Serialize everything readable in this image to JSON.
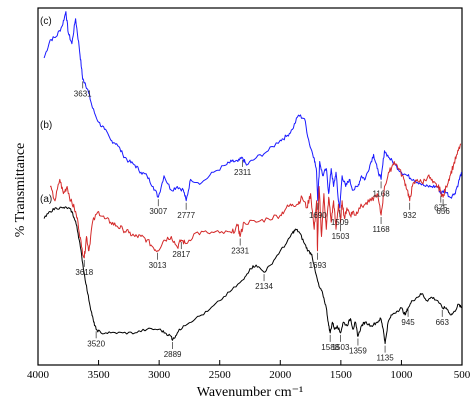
{
  "chart_data": {
    "type": "line",
    "xlabel": "Wavenumber cm⁻¹",
    "ylabel": "% Transmittance",
    "xlim": [
      4000,
      500
    ],
    "x_ticks": [
      4000,
      3500,
      3000,
      2500,
      2000,
      1500,
      1000,
      500
    ],
    "grid": false,
    "series": [
      {
        "name": "(c)",
        "color": "#1a1aff",
        "x": [
          3950,
          3900,
          3850,
          3800,
          3770,
          3750,
          3720,
          3690,
          3660,
          3640,
          3631,
          3610,
          3580,
          3550,
          3500,
          3450,
          3400,
          3350,
          3300,
          3250,
          3200,
          3150,
          3100,
          3050,
          3007,
          2960,
          2900,
          2850,
          2800,
          2777,
          2740,
          2650,
          2550,
          2450,
          2400,
          2350,
          2311,
          2280,
          2200,
          2100,
          2000,
          1950,
          1900,
          1850,
          1800,
          1760,
          1720,
          1700,
          1690,
          1675,
          1650,
          1620,
          1600,
          1580,
          1560,
          1540,
          1520,
          1509,
          1490,
          1460,
          1430,
          1400,
          1360,
          1330,
          1300,
          1260,
          1230,
          1200,
          1168,
          1140,
          1100,
          1050,
          1000,
          950,
          900,
          850,
          800,
          750,
          700,
          675,
          640,
          600,
          560,
          530,
          505
        ],
        "y": [
          0.86,
          0.91,
          0.92,
          0.95,
          0.99,
          0.93,
          0.9,
          0.97,
          0.89,
          0.83,
          0.8,
          0.79,
          0.76,
          0.72,
          0.68,
          0.66,
          0.63,
          0.62,
          0.59,
          0.57,
          0.56,
          0.54,
          0.53,
          0.5,
          0.47,
          0.53,
          0.49,
          0.5,
          0.49,
          0.46,
          0.52,
          0.51,
          0.54,
          0.56,
          0.57,
          0.57,
          0.58,
          0.56,
          0.58,
          0.6,
          0.63,
          0.64,
          0.66,
          0.7,
          0.69,
          0.62,
          0.58,
          0.54,
          0.46,
          0.57,
          0.53,
          0.55,
          0.48,
          0.55,
          0.5,
          0.54,
          0.46,
          0.44,
          0.53,
          0.5,
          0.52,
          0.49,
          0.5,
          0.53,
          0.52,
          0.56,
          0.59,
          0.55,
          0.52,
          0.6,
          0.58,
          0.56,
          0.54,
          0.53,
          0.52,
          0.51,
          0.5,
          0.5,
          0.5,
          0.48,
          0.49,
          0.47,
          0.48,
          0.51,
          0.54
        ]
      },
      {
        "name": "(b)",
        "color": "#d42a2a",
        "x": [
          3900,
          3860,
          3820,
          3790,
          3760,
          3730,
          3700,
          3670,
          3640,
          3618,
          3600,
          3580,
          3550,
          3500,
          3450,
          3400,
          3350,
          3300,
          3250,
          3200,
          3150,
          3100,
          3050,
          3013,
          2960,
          2900,
          2850,
          2817,
          2780,
          2700,
          2600,
          2500,
          2400,
          2350,
          2331,
          2300,
          2200,
          2100,
          2000,
          1950,
          1900,
          1860,
          1820,
          1780,
          1750,
          1720,
          1700,
          1693,
          1680,
          1660,
          1640,
          1620,
          1600,
          1580,
          1560,
          1540,
          1520,
          1503,
          1490,
          1470,
          1450,
          1420,
          1400,
          1380,
          1350,
          1300,
          1250,
          1200,
          1168,
          1140,
          1100,
          1060,
          1020,
          980,
          950,
          932,
          910,
          870,
          830,
          780,
          740,
          700,
          680,
          656,
          630,
          600,
          570,
          540,
          510
        ],
        "y": [
          0.5,
          0.46,
          0.52,
          0.48,
          0.5,
          0.46,
          0.44,
          0.4,
          0.33,
          0.3,
          0.36,
          0.32,
          0.4,
          0.43,
          0.41,
          0.4,
          0.39,
          0.38,
          0.37,
          0.36,
          0.36,
          0.35,
          0.33,
          0.32,
          0.35,
          0.36,
          0.33,
          0.35,
          0.34,
          0.37,
          0.37,
          0.37,
          0.37,
          0.39,
          0.36,
          0.4,
          0.4,
          0.41,
          0.42,
          0.44,
          0.45,
          0.45,
          0.47,
          0.44,
          0.48,
          0.38,
          0.46,
          0.32,
          0.5,
          0.36,
          0.48,
          0.38,
          0.47,
          0.4,
          0.46,
          0.38,
          0.45,
          0.4,
          0.46,
          0.41,
          0.44,
          0.42,
          0.43,
          0.42,
          0.44,
          0.45,
          0.46,
          0.48,
          0.42,
          0.5,
          0.54,
          0.57,
          0.55,
          0.52,
          0.49,
          0.46,
          0.5,
          0.52,
          0.51,
          0.53,
          0.51,
          0.5,
          0.49,
          0.47,
          0.5,
          0.53,
          0.56,
          0.59,
          0.62
        ]
      },
      {
        "name": "(a)",
        "color": "#000000",
        "x": [
          3950,
          3900,
          3850,
          3800,
          3750,
          3720,
          3700,
          3680,
          3650,
          3620,
          3590,
          3560,
          3540,
          3520,
          3480,
          3400,
          3300,
          3200,
          3100,
          3000,
          2950,
          2900,
          2889,
          2850,
          2800,
          2700,
          2600,
          2500,
          2400,
          2300,
          2250,
          2200,
          2134,
          2080,
          2000,
          1950,
          1900,
          1870,
          1840,
          1800,
          1770,
          1740,
          1710,
          1680,
          1650,
          1620,
          1600,
          1588,
          1570,
          1550,
          1530,
          1503,
          1480,
          1450,
          1420,
          1400,
          1380,
          1359,
          1330,
          1300,
          1250,
          1200,
          1170,
          1150,
          1135,
          1110,
          1080,
          1040,
          1000,
          970,
          945,
          910,
          870,
          830,
          790,
          750,
          700,
          663,
          630,
          590,
          560,
          530,
          505
        ],
        "y": [
          0.41,
          0.43,
          0.44,
          0.44,
          0.44,
          0.43,
          0.41,
          0.39,
          0.33,
          0.26,
          0.2,
          0.15,
          0.12,
          0.1,
          0.09,
          0.09,
          0.09,
          0.09,
          0.1,
          0.1,
          0.09,
          0.08,
          0.07,
          0.09,
          0.11,
          0.13,
          0.15,
          0.18,
          0.21,
          0.24,
          0.27,
          0.28,
          0.26,
          0.28,
          0.32,
          0.34,
          0.37,
          0.38,
          0.37,
          0.34,
          0.32,
          0.31,
          0.26,
          0.22,
          0.2,
          0.16,
          0.11,
          0.09,
          0.12,
          0.1,
          0.11,
          0.09,
          0.12,
          0.11,
          0.13,
          0.1,
          0.12,
          0.08,
          0.11,
          0.12,
          0.11,
          0.12,
          0.13,
          0.1,
          0.06,
          0.12,
          0.14,
          0.15,
          0.16,
          0.14,
          0.16,
          0.18,
          0.19,
          0.2,
          0.18,
          0.19,
          0.18,
          0.16,
          0.16,
          0.14,
          0.15,
          0.17,
          0.16
        ]
      }
    ],
    "annotations": [
      {
        "text": "3631",
        "x": 3631,
        "series": 0
      },
      {
        "text": "3007",
        "x": 3007,
        "series": 0
      },
      {
        "text": "2777",
        "x": 2777,
        "series": 0
      },
      {
        "text": "2311",
        "x": 2311,
        "series": 0
      },
      {
        "text": "1690",
        "x": 1690,
        "series": 0
      },
      {
        "text": "1509",
        "x": 1509,
        "series": 0
      },
      {
        "text": "1168",
        "x": 1168,
        "series": 0
      },
      {
        "text": "675",
        "x": 675,
        "series": 0
      },
      {
        "text": "3618",
        "x": 3618,
        "series": 1
      },
      {
        "text": "3013",
        "x": 3013,
        "series": 1
      },
      {
        "text": "2817",
        "x": 2817,
        "series": 1
      },
      {
        "text": "2331",
        "x": 2331,
        "series": 1
      },
      {
        "text": "1693",
        "x": 1693,
        "series": 1
      },
      {
        "text": "1503",
        "x": 1503,
        "series": 1
      },
      {
        "text": "1168",
        "x": 1168,
        "series": 1
      },
      {
        "text": "932",
        "x": 932,
        "series": 1
      },
      {
        "text": "656",
        "x": 656,
        "series": 1
      },
      {
        "text": "3520",
        "x": 3520,
        "series": 2
      },
      {
        "text": "2889",
        "x": 2889,
        "series": 2
      },
      {
        "text": "2134",
        "x": 2134,
        "series": 2
      },
      {
        "text": "1588",
        "x": 1588,
        "series": 2
      },
      {
        "text": "1503",
        "x": 1503,
        "series": 2
      },
      {
        "text": "1359",
        "x": 1359,
        "series": 2
      },
      {
        "text": "1135",
        "x": 1135,
        "series": 2
      },
      {
        "text": "945",
        "x": 945,
        "series": 2
      },
      {
        "text": "663",
        "x": 663,
        "series": 2
      }
    ]
  }
}
